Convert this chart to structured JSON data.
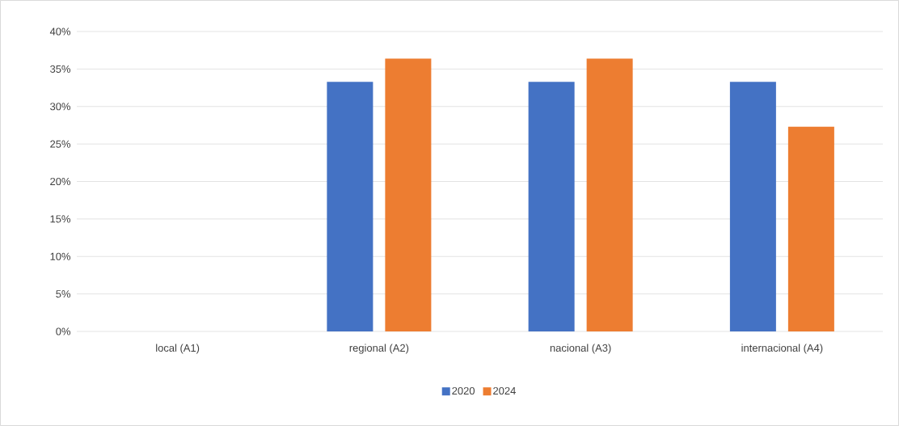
{
  "chart_data": {
    "type": "bar",
    "categories": [
      "local (A1)",
      "regional (A2)",
      "nacional (A3)",
      "internacional (A4)"
    ],
    "series": [
      {
        "name": "2020",
        "color": "#4472c4",
        "values": [
          0,
          33.3,
          33.3,
          33.3
        ]
      },
      {
        "name": "2024",
        "color": "#ed7d31",
        "values": [
          0,
          36.4,
          36.4,
          27.3
        ]
      }
    ],
    "ylim": [
      0,
      40
    ],
    "yticks": [
      {
        "value": 0,
        "label": "0%"
      },
      {
        "value": 5,
        "label": "5%"
      },
      {
        "value": 10,
        "label": "10%"
      },
      {
        "value": 15,
        "label": "15%"
      },
      {
        "value": 20,
        "label": "20%"
      },
      {
        "value": 25,
        "label": "25%"
      },
      {
        "value": 30,
        "label": "30%"
      },
      {
        "value": 35,
        "label": "35%"
      },
      {
        "value": 40,
        "label": "40%"
      }
    ],
    "grid": "y",
    "legend": "bottom"
  }
}
